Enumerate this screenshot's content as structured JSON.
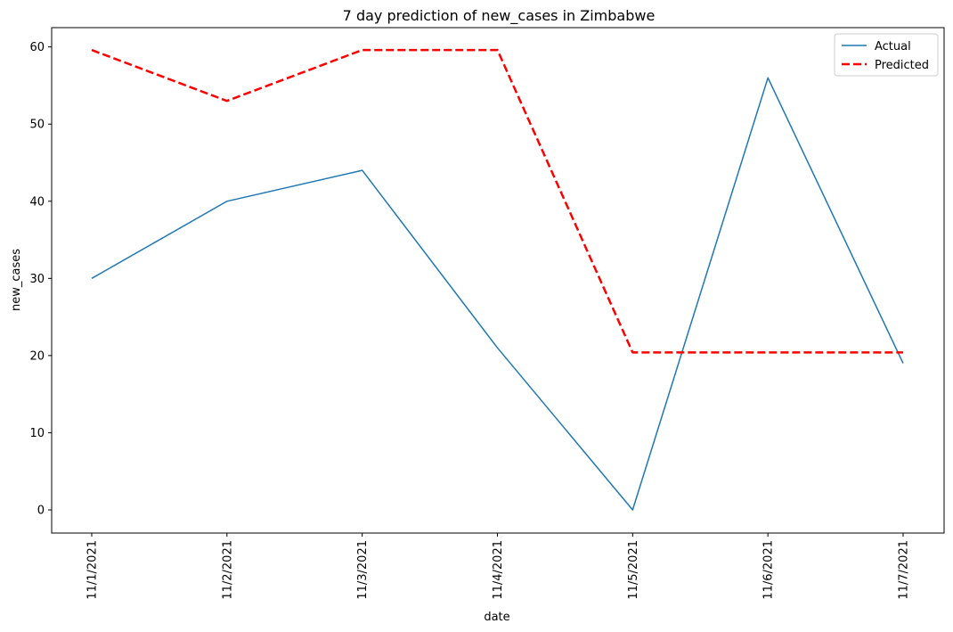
{
  "chart_data": {
    "type": "line",
    "title": "7 day prediction of new_cases in Zimbabwe",
    "xlabel": "date",
    "ylabel": "new_cases",
    "categories": [
      "11/1/2021",
      "11/2/2021",
      "11/3/2021",
      "11/4/2021",
      "11/5/2021",
      "11/6/2021",
      "11/7/2021"
    ],
    "ylim": [
      -3,
      62.5
    ],
    "yticks": [
      0,
      10,
      20,
      30,
      40,
      50,
      60
    ],
    "grid": false,
    "legend_position": "top-right",
    "series": [
      {
        "name": "Actual",
        "values": [
          30,
          40,
          44,
          21,
          0,
          56,
          19
        ],
        "color": "#1f77b4",
        "style": "solid"
      },
      {
        "name": "Predicted",
        "values": [
          59.6,
          53,
          59.6,
          59.6,
          20.4,
          20.4,
          20.4
        ],
        "color": "#ff0000",
        "style": "dashed"
      }
    ]
  }
}
